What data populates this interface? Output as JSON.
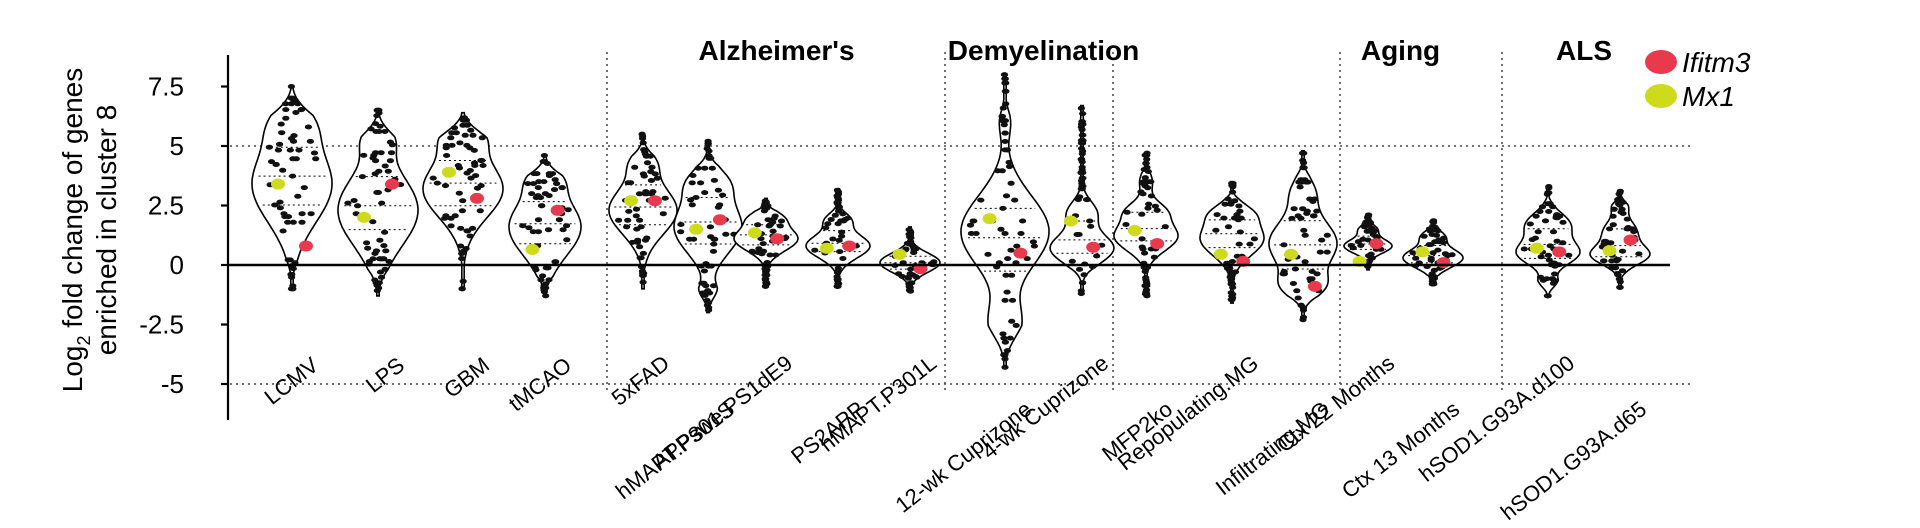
{
  "chart_data": {
    "type": "violin",
    "ylabel": {
      "prefix": "Log",
      "subscript": "2",
      "rest": " fold change of genes",
      "line2": "enriched in cluster 8"
    },
    "y_ticks": [
      "7.5",
      "5",
      "2.5",
      "0",
      "-2.5",
      "-5"
    ],
    "y_tick_values": [
      7.5,
      5,
      2.5,
      0,
      -2.5,
      -5
    ],
    "ylim": [
      -6.5,
      8.8
    ],
    "gridlines": [
      5,
      -5
    ],
    "groups": [
      {
        "label": "",
        "start": 0,
        "end": 3
      },
      {
        "label": "Alzheimer's",
        "start": 4,
        "end": 8
      },
      {
        "label": "Demyelination",
        "start": 9,
        "end": 10
      },
      {
        "label": "",
        "start": 11,
        "end": 13
      },
      {
        "label": "Aging",
        "start": 14,
        "end": 15
      },
      {
        "label": "ALS",
        "start": 16,
        "end": 17
      }
    ],
    "legend": [
      {
        "label": "Ifitm3",
        "color": "#e8394d"
      },
      {
        "label": "Mx1",
        "color": "#cedb1d"
      }
    ],
    "categories": [
      "LCMV",
      "LPS",
      "GBM",
      "tMCAO",
      "5xFAD",
      "hMAPT.P301S",
      "APPswe.PS1dE9",
      "PS2APP",
      "hMAPT.P301L",
      "12-wk Cuprizone",
      "4-wk Cuprizone",
      "MFP2ko",
      "Repopulating.MG",
      "Infiltrating.MG",
      "Ctx 22 Months",
      "Ctx 13 Months",
      "hSOD1.G93A.d100",
      "hSOD1.G93A.d65"
    ],
    "distributions": [
      {
        "min": -1.0,
        "max": 7.5,
        "peaks": [
          [
            3.4,
            1.6,
            1.0
          ],
          [
            6.0,
            0.8,
            0.35
          ]
        ]
      },
      {
        "min": -1.3,
        "max": 6.5,
        "peaks": [
          [
            2.3,
            1.5,
            1.0
          ],
          [
            5.3,
            0.6,
            0.3
          ]
        ]
      },
      {
        "min": -1.0,
        "max": 6.4,
        "peaks": [
          [
            3.2,
            1.2,
            1.0
          ],
          [
            5.4,
            0.6,
            0.4
          ]
        ]
      },
      {
        "min": -1.3,
        "max": 4.6,
        "peaks": [
          [
            1.6,
            1.2,
            1.0
          ],
          [
            3.6,
            0.5,
            0.3
          ]
        ]
      },
      {
        "min": -1.0,
        "max": 5.5,
        "peaks": [
          [
            2.3,
            1.0,
            1.0
          ],
          [
            4.3,
            0.5,
            0.3
          ]
        ]
      },
      {
        "min": -2.0,
        "max": 5.2,
        "peaks": [
          [
            1.6,
            1.1,
            1.0
          ],
          [
            3.5,
            0.6,
            0.45
          ],
          [
            -1.2,
            0.4,
            0.25
          ]
        ]
      },
      {
        "min": -0.9,
        "max": 2.8,
        "peaks": [
          [
            1.1,
            0.5,
            1.0
          ],
          [
            2.0,
            0.3,
            0.4
          ]
        ]
      },
      {
        "min": -0.9,
        "max": 3.2,
        "peaks": [
          [
            0.8,
            0.5,
            1.0
          ],
          [
            1.9,
            0.3,
            0.35
          ]
        ]
      },
      {
        "min": -1.1,
        "max": 1.6,
        "peaks": [
          [
            0.1,
            0.4,
            1.0
          ]
        ]
      },
      {
        "min": -4.3,
        "max": 8.0,
        "peaks": [
          [
            1.4,
            1.5,
            1.0
          ],
          [
            -2.5,
            0.9,
            0.35
          ],
          [
            6.0,
            0.6,
            0.12
          ]
        ]
      },
      {
        "min": -1.2,
        "max": 6.7,
        "peaks": [
          [
            0.7,
            0.6,
            1.0
          ],
          [
            2.2,
            0.5,
            0.45
          ],
          [
            6.2,
            0.25,
            0.08
          ]
        ]
      },
      {
        "min": -1.3,
        "max": 4.7,
        "peaks": [
          [
            1.2,
            0.6,
            1.0
          ],
          [
            2.3,
            0.4,
            0.5
          ],
          [
            3.5,
            0.4,
            0.2
          ]
        ]
      },
      {
        "min": -1.6,
        "max": 3.5,
        "peaks": [
          [
            1.1,
            0.7,
            1.0
          ],
          [
            2.2,
            0.4,
            0.45
          ]
        ]
      },
      {
        "min": -2.3,
        "max": 4.8,
        "peaks": [
          [
            0.9,
            1.0,
            1.0
          ],
          [
            -0.9,
            0.5,
            0.5
          ],
          [
            3.1,
            0.6,
            0.3
          ]
        ]
      },
      {
        "min": -0.2,
        "max": 2.1,
        "peaks": [
          [
            0.8,
            0.3,
            1.0
          ],
          [
            1.5,
            0.2,
            0.35
          ]
        ]
      },
      {
        "min": -0.8,
        "max": 1.9,
        "peaks": [
          [
            0.3,
            0.4,
            1.0
          ],
          [
            1.2,
            0.25,
            0.35
          ]
        ]
      },
      {
        "min": -1.3,
        "max": 3.3,
        "peaks": [
          [
            0.5,
            0.5,
            1.0
          ],
          [
            1.7,
            0.5,
            0.7
          ],
          [
            -0.8,
            0.3,
            0.3
          ]
        ]
      },
      {
        "min": -1.0,
        "max": 3.1,
        "peaks": [
          [
            0.4,
            0.4,
            1.0
          ],
          [
            1.4,
            0.5,
            0.6
          ],
          [
            2.5,
            0.3,
            0.25
          ]
        ]
      }
    ],
    "highlights": {
      "Ifitm3": [
        0.8,
        3.4,
        2.8,
        2.3,
        2.7,
        1.9,
        1.1,
        0.8,
        -0.15,
        0.5,
        0.75,
        0.9,
        0.15,
        -0.9,
        0.9,
        0.1,
        0.55,
        1.05
      ],
      "Mx1": [
        3.4,
        2.0,
        3.9,
        0.65,
        2.7,
        1.5,
        1.35,
        0.7,
        0.45,
        1.95,
        1.85,
        1.45,
        0.45,
        0.45,
        0.15,
        0.55,
        0.7,
        0.6
      ]
    },
    "grid": "dotted at 5 and -5",
    "legend_placement": "top-right"
  }
}
